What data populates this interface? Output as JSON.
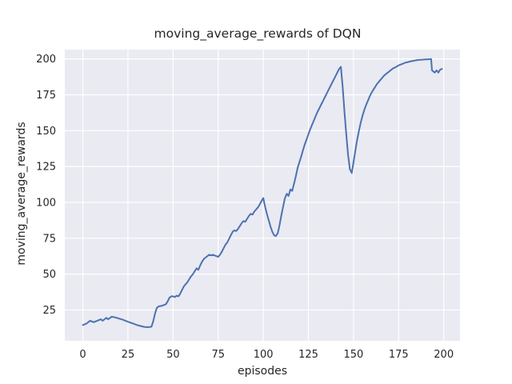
{
  "style": {
    "line_color": "#4C72B0",
    "axes_background": "#EAEAF2",
    "grid_color": "#FFFFFF",
    "text_color": "#262626",
    "figure_background": "#FFFFFF"
  },
  "chart_data": {
    "type": "line",
    "title": "moving_average_rewards of DQN",
    "xlabel": "episodes",
    "ylabel": "moving_average_rewards",
    "x_ticks": [
      0,
      25,
      50,
      75,
      100,
      125,
      150,
      175,
      200
    ],
    "y_ticks": [
      25,
      50,
      75,
      100,
      125,
      150,
      175,
      200
    ],
    "xlim": [
      -10,
      209
    ],
    "ylim": [
      3.5,
      206.5
    ],
    "grid": true,
    "legend": "none",
    "series": [
      {
        "name": "moving_average_rewards",
        "x": [
          0,
          2,
          4,
          6,
          8,
          10,
          11,
          13,
          14,
          16,
          18,
          20,
          22,
          25,
          28,
          30,
          32,
          34,
          36,
          38,
          39,
          40,
          41,
          42,
          44,
          45,
          46,
          47,
          48,
          49,
          50,
          51,
          52,
          53,
          54,
          55,
          56,
          57,
          58,
          59,
          60,
          61,
          62,
          63,
          64,
          65,
          66,
          67,
          68,
          69,
          70,
          71,
          72,
          74,
          75,
          76,
          77,
          78,
          79,
          80,
          81,
          82,
          83,
          84,
          85,
          86,
          87,
          88,
          89,
          90,
          91,
          92,
          93,
          94,
          95,
          96,
          97,
          98,
          99,
          100,
          101,
          102,
          103,
          104,
          105,
          106,
          107,
          108,
          109,
          110,
          111,
          112,
          113,
          114,
          115,
          116,
          117,
          118,
          119,
          120,
          121,
          122,
          123,
          124,
          125,
          126,
          127,
          128,
          129,
          130,
          131,
          132,
          133,
          134,
          135,
          136,
          137,
          138,
          139,
          140,
          141,
          142,
          143,
          144,
          145,
          146,
          147,
          148,
          149,
          150,
          151,
          152,
          153,
          154,
          155,
          156,
          157,
          158,
          159,
          160,
          161,
          162,
          163,
          164,
          165,
          166,
          167,
          168,
          169,
          170,
          171,
          172,
          173,
          174,
          175,
          176,
          177,
          178,
          179,
          180,
          182,
          184,
          186,
          188,
          190,
          192,
          193,
          193.5,
          194,
          195,
          196,
          197,
          198,
          199
        ],
        "y": [
          14.5,
          15.5,
          17.5,
          16.5,
          17.5,
          18.5,
          17.5,
          19.5,
          18.5,
          20.3,
          19.8,
          19,
          18.3,
          16.8,
          15.5,
          14.5,
          13.8,
          13.2,
          13,
          13.3,
          17,
          22.5,
          26.5,
          27.5,
          28,
          28.5,
          29,
          31,
          33.5,
          34.5,
          34.5,
          34,
          35,
          34.5,
          36.5,
          39,
          41.5,
          43,
          44.5,
          46.5,
          48.5,
          50,
          52,
          54,
          53,
          56,
          58.5,
          60.5,
          61.5,
          62.5,
          63.5,
          63,
          63.5,
          62.5,
          62,
          63.5,
          65.5,
          68,
          70.5,
          72,
          74.5,
          77,
          79.5,
          80.5,
          80,
          81.5,
          83.5,
          85.5,
          87,
          86.5,
          88.5,
          90.5,
          92,
          91.5,
          93.5,
          95,
          96.5,
          98.5,
          101,
          103,
          97,
          92,
          87.5,
          83,
          79.5,
          77,
          76.5,
          78.5,
          84,
          91,
          97,
          103,
          106,
          104.5,
          109,
          108,
          113,
          118,
          124,
          128,
          132,
          136.5,
          140.5,
          144,
          147.5,
          151,
          154,
          157,
          160,
          163,
          165.5,
          168,
          170.5,
          173,
          175.5,
          178,
          180.5,
          183,
          185.5,
          188,
          190.5,
          193,
          194.5,
          180,
          163,
          147,
          133,
          123,
          120.5,
          128,
          136,
          143.5,
          150,
          155.5,
          160.5,
          164.5,
          168,
          171,
          174,
          176.5,
          178.5,
          180.5,
          182.5,
          184,
          185.5,
          187,
          188.5,
          189.5,
          190.5,
          191.5,
          192.5,
          193.5,
          194,
          194.8,
          195.5,
          196,
          196.5,
          197,
          197.5,
          197.8,
          198.4,
          198.9,
          199.3,
          199.5,
          199.7,
          199.8,
          199.9,
          192,
          191.5,
          190.5,
          192,
          190.5,
          192.5,
          193
        ]
      }
    ]
  }
}
